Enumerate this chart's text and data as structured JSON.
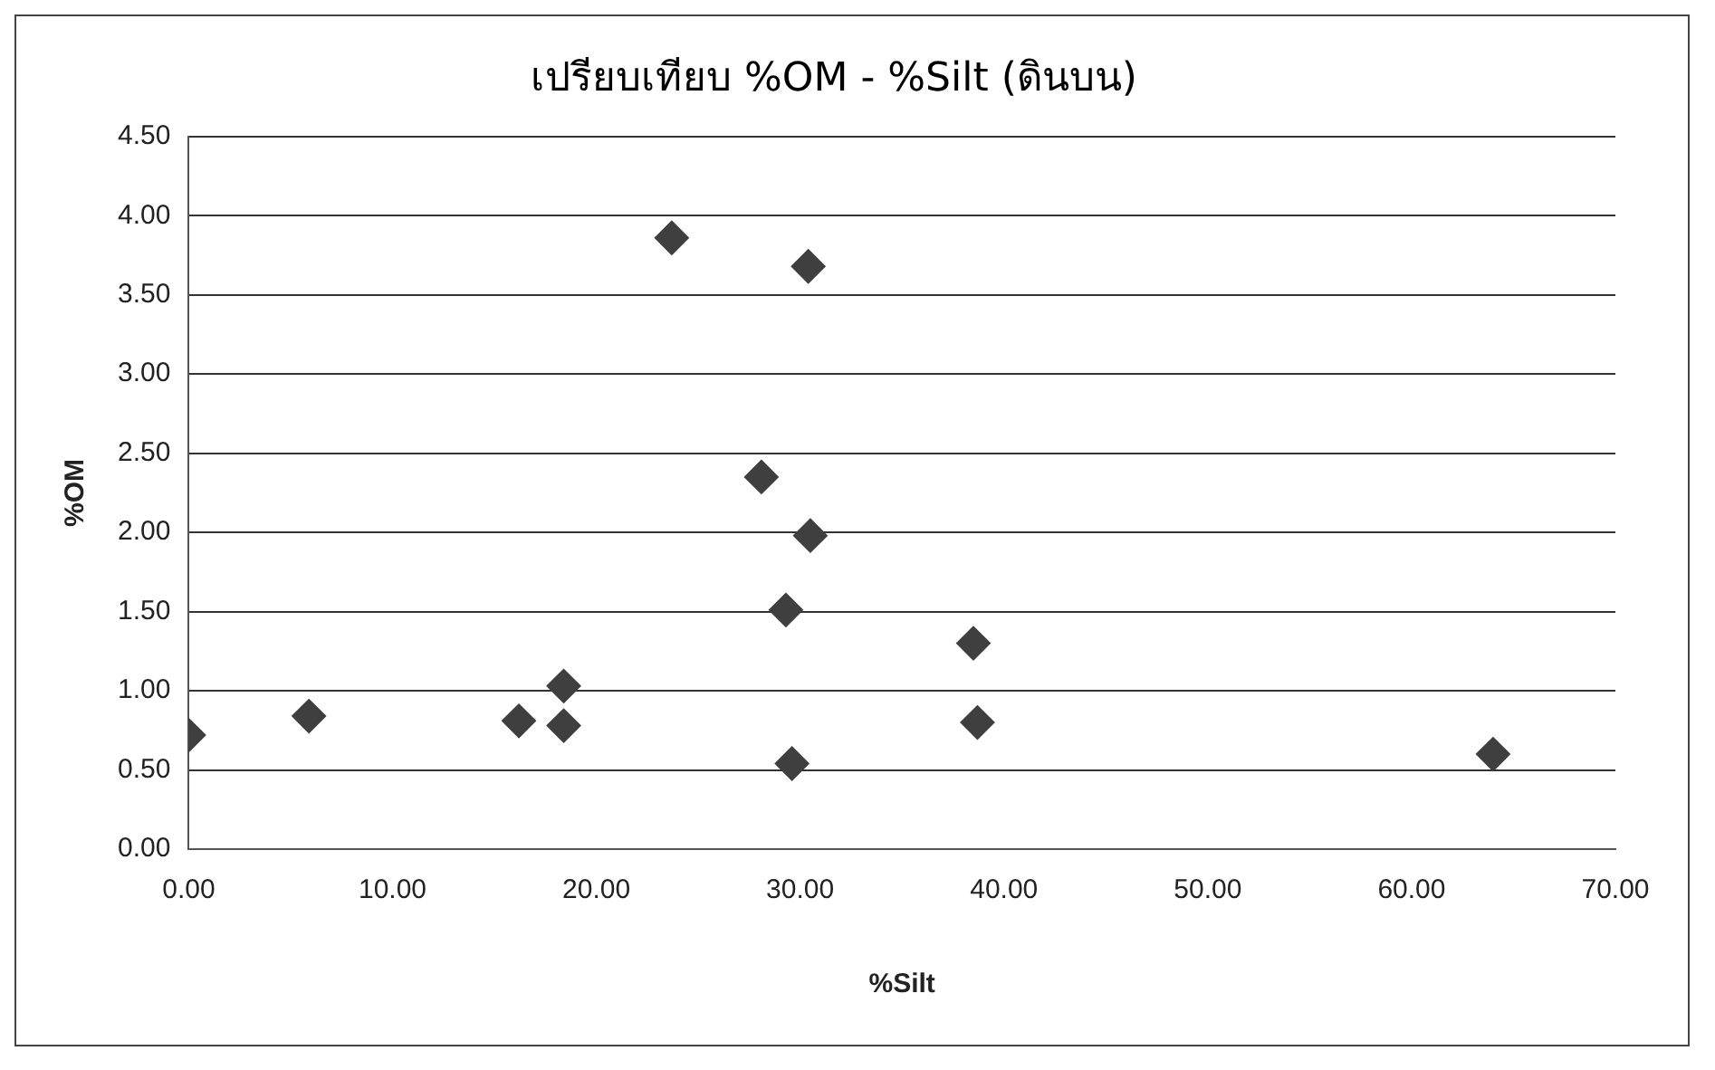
{
  "chart_data": {
    "type": "scatter",
    "title": "เปรียบเทียบ %OM - %Silt (ดินบน)",
    "xlabel": "%Silt",
    "ylabel": "%OM",
    "x": [
      0,
      5.9,
      16.2,
      18.4,
      18.4,
      23.7,
      30.4,
      28.1,
      30.5,
      29.3,
      29.6,
      38.5,
      38.7,
      64.0
    ],
    "series": [
      {
        "color": "#3f3f3f",
        "values": [
          0.72,
          0.84,
          0.81,
          1.03,
          0.78,
          3.86,
          3.68,
          2.35,
          1.98,
          1.51,
          0.54,
          1.3,
          0.8,
          0.6
        ]
      }
    ],
    "xlim": [
      0,
      70
    ],
    "xticks": [
      {
        "value": 0,
        "label": "0.00"
      },
      {
        "value": 10,
        "label": "10.00"
      },
      {
        "value": 20,
        "label": "20.00"
      },
      {
        "value": 30,
        "label": "30.00"
      },
      {
        "value": 40,
        "label": "40.00"
      },
      {
        "value": 50,
        "label": "50.00"
      },
      {
        "value": 60,
        "label": "60.00"
      },
      {
        "value": 70,
        "label": "70.00"
      }
    ],
    "ylim": [
      0,
      4.5
    ],
    "yticks": [
      {
        "value": 0,
        "label": "0.00"
      },
      {
        "value": 0.5,
        "label": "0.50"
      },
      {
        "value": 1,
        "label": "1.00"
      },
      {
        "value": 1.5,
        "label": "1.50"
      },
      {
        "value": 2,
        "label": "2.00"
      },
      {
        "value": 2.5,
        "label": "2.50"
      },
      {
        "value": 3,
        "label": "3.00"
      },
      {
        "value": 3.5,
        "label": "3.50"
      },
      {
        "value": 4,
        "label": "4.00"
      },
      {
        "value": 4.5,
        "label": "4.50"
      }
    ],
    "grid": "y",
    "marker": "diamond",
    "legend": false
  }
}
